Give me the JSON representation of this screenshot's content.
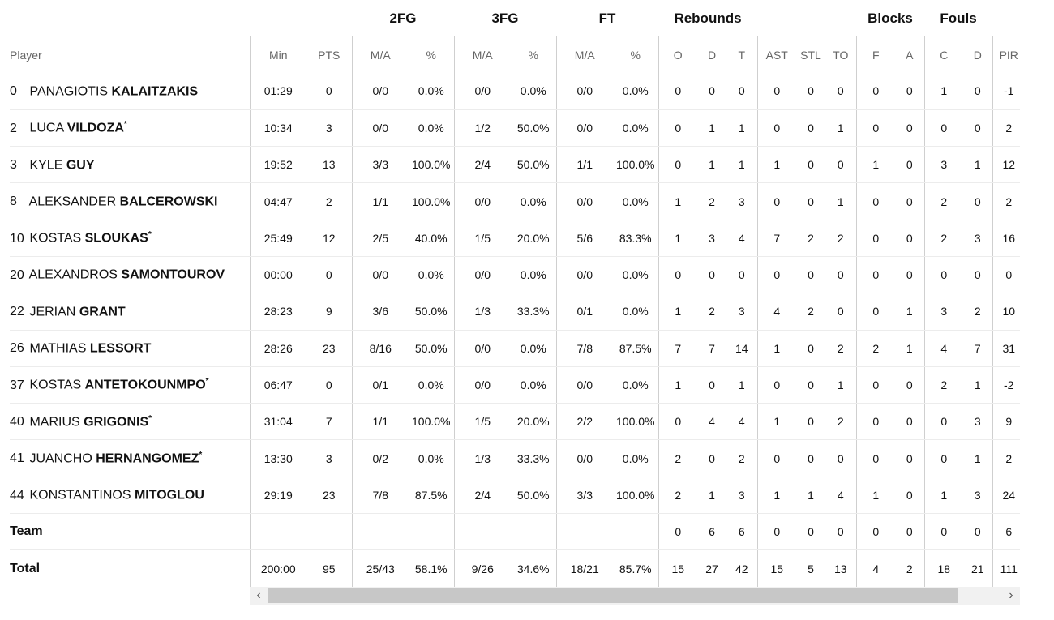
{
  "groups": {
    "fg2": "2FG",
    "fg3": "3FG",
    "ft": "FT",
    "reb": "Rebounds",
    "blk": "Blocks",
    "fouls": "Fouls"
  },
  "headers": {
    "player": "Player",
    "min": "Min",
    "pts": "PTS",
    "fg2_ma": "M/A",
    "fg2_pct": "%",
    "fg3_ma": "M/A",
    "fg3_pct": "%",
    "ft_ma": "M/A",
    "ft_pct": "%",
    "o": "O",
    "d": "D",
    "t": "T",
    "ast": "AST",
    "stl": "STL",
    "to": "TO",
    "bf": "F",
    "ba": "A",
    "fc": "C",
    "fd": "D",
    "pir": "PIR"
  },
  "players": [
    {
      "num": "0",
      "first": "PANAGIOTIS",
      "last": "KALAITZAKIS",
      "star": "",
      "min": "01:29",
      "pts": "0",
      "fg2": "0/0",
      "fg2p": "0.0%",
      "fg3": "0/0",
      "fg3p": "0.0%",
      "ft": "0/0",
      "ftp": "0.0%",
      "o": "0",
      "d": "0",
      "t": "0",
      "ast": "0",
      "stl": "0",
      "to": "0",
      "bf": "0",
      "ba": "0",
      "fc": "1",
      "fd": "0",
      "pir": "-1"
    },
    {
      "num": "2",
      "first": "LUCA",
      "last": "VILDOZA",
      "star": "*",
      "min": "10:34",
      "pts": "3",
      "fg2": "0/0",
      "fg2p": "0.0%",
      "fg3": "1/2",
      "fg3p": "50.0%",
      "ft": "0/0",
      "ftp": "0.0%",
      "o": "0",
      "d": "1",
      "t": "1",
      "ast": "0",
      "stl": "0",
      "to": "1",
      "bf": "0",
      "ba": "0",
      "fc": "0",
      "fd": "0",
      "pir": "2"
    },
    {
      "num": "3",
      "first": "KYLE",
      "last": "GUY",
      "star": "",
      "min": "19:52",
      "pts": "13",
      "fg2": "3/3",
      "fg2p": "100.0%",
      "fg3": "2/4",
      "fg3p": "50.0%",
      "ft": "1/1",
      "ftp": "100.0%",
      "o": "0",
      "d": "1",
      "t": "1",
      "ast": "1",
      "stl": "0",
      "to": "0",
      "bf": "1",
      "ba": "0",
      "fc": "3",
      "fd": "1",
      "pir": "12"
    },
    {
      "num": "8",
      "first": "ALEKSANDER",
      "last": "BALCEROWSKI",
      "star": "",
      "min": "04:47",
      "pts": "2",
      "fg2": "1/1",
      "fg2p": "100.0%",
      "fg3": "0/0",
      "fg3p": "0.0%",
      "ft": "0/0",
      "ftp": "0.0%",
      "o": "1",
      "d": "2",
      "t": "3",
      "ast": "0",
      "stl": "0",
      "to": "1",
      "bf": "0",
      "ba": "0",
      "fc": "2",
      "fd": "0",
      "pir": "2"
    },
    {
      "num": "10",
      "first": "KOSTAS",
      "last": "SLOUKAS",
      "star": "*",
      "min": "25:49",
      "pts": "12",
      "fg2": "2/5",
      "fg2p": "40.0%",
      "fg3": "1/5",
      "fg3p": "20.0%",
      "ft": "5/6",
      "ftp": "83.3%",
      "o": "1",
      "d": "3",
      "t": "4",
      "ast": "7",
      "stl": "2",
      "to": "2",
      "bf": "0",
      "ba": "0",
      "fc": "2",
      "fd": "3",
      "pir": "16"
    },
    {
      "num": "20",
      "first": "ALEXANDROS",
      "last": "SAMONTOUROV",
      "star": "",
      "min": "00:00",
      "pts": "0",
      "fg2": "0/0",
      "fg2p": "0.0%",
      "fg3": "0/0",
      "fg3p": "0.0%",
      "ft": "0/0",
      "ftp": "0.0%",
      "o": "0",
      "d": "0",
      "t": "0",
      "ast": "0",
      "stl": "0",
      "to": "0",
      "bf": "0",
      "ba": "0",
      "fc": "0",
      "fd": "0",
      "pir": "0"
    },
    {
      "num": "22",
      "first": "JERIAN",
      "last": "GRANT",
      "star": "",
      "min": "28:23",
      "pts": "9",
      "fg2": "3/6",
      "fg2p": "50.0%",
      "fg3": "1/3",
      "fg3p": "33.3%",
      "ft": "0/1",
      "ftp": "0.0%",
      "o": "1",
      "d": "2",
      "t": "3",
      "ast": "4",
      "stl": "2",
      "to": "0",
      "bf": "0",
      "ba": "1",
      "fc": "3",
      "fd": "2",
      "pir": "10"
    },
    {
      "num": "26",
      "first": "MATHIAS",
      "last": "LESSORT",
      "star": "",
      "min": "28:26",
      "pts": "23",
      "fg2": "8/16",
      "fg2p": "50.0%",
      "fg3": "0/0",
      "fg3p": "0.0%",
      "ft": "7/8",
      "ftp": "87.5%",
      "o": "7",
      "d": "7",
      "t": "14",
      "ast": "1",
      "stl": "0",
      "to": "2",
      "bf": "2",
      "ba": "1",
      "fc": "4",
      "fd": "7",
      "pir": "31"
    },
    {
      "num": "37",
      "first": "KOSTAS",
      "last": "ANTETOKOUNMPO",
      "star": "*",
      "min": "06:47",
      "pts": "0",
      "fg2": "0/1",
      "fg2p": "0.0%",
      "fg3": "0/0",
      "fg3p": "0.0%",
      "ft": "0/0",
      "ftp": "0.0%",
      "o": "1",
      "d": "0",
      "t": "1",
      "ast": "0",
      "stl": "0",
      "to": "1",
      "bf": "0",
      "ba": "0",
      "fc": "2",
      "fd": "1",
      "pir": "-2"
    },
    {
      "num": "40",
      "first": "MARIUS",
      "last": "GRIGONIS",
      "star": "*",
      "min": "31:04",
      "pts": "7",
      "fg2": "1/1",
      "fg2p": "100.0%",
      "fg3": "1/5",
      "fg3p": "20.0%",
      "ft": "2/2",
      "ftp": "100.0%",
      "o": "0",
      "d": "4",
      "t": "4",
      "ast": "1",
      "stl": "0",
      "to": "2",
      "bf": "0",
      "ba": "0",
      "fc": "0",
      "fd": "3",
      "pir": "9"
    },
    {
      "num": "41",
      "first": "JUANCHO",
      "last": "HERNANGOMEZ",
      "star": "*",
      "min": "13:30",
      "pts": "3",
      "fg2": "0/2",
      "fg2p": "0.0%",
      "fg3": "1/3",
      "fg3p": "33.3%",
      "ft": "0/0",
      "ftp": "0.0%",
      "o": "2",
      "d": "0",
      "t": "2",
      "ast": "0",
      "stl": "0",
      "to": "0",
      "bf": "0",
      "ba": "0",
      "fc": "0",
      "fd": "1",
      "pir": "2"
    },
    {
      "num": "44",
      "first": "KONSTANTINOS",
      "last": "MITOGLOU",
      "star": "",
      "min": "29:19",
      "pts": "23",
      "fg2": "7/8",
      "fg2p": "87.5%",
      "fg3": "2/4",
      "fg3p": "50.0%",
      "ft": "3/3",
      "ftp": "100.0%",
      "o": "2",
      "d": "1",
      "t": "3",
      "ast": "1",
      "stl": "1",
      "to": "4",
      "bf": "1",
      "ba": "0",
      "fc": "1",
      "fd": "3",
      "pir": "24"
    }
  ],
  "team": {
    "label": "Team",
    "min": "",
    "pts": "",
    "fg2": "",
    "fg2p": "",
    "fg3": "",
    "fg3p": "",
    "ft": "",
    "ftp": "",
    "o": "0",
    "d": "6",
    "t": "6",
    "ast": "0",
    "stl": "0",
    "to": "0",
    "bf": "0",
    "ba": "0",
    "fc": "0",
    "fd": "0",
    "pir": "6"
  },
  "total": {
    "label": "Total",
    "min": "200:00",
    "pts": "95",
    "fg2": "25/43",
    "fg2p": "58.1%",
    "fg3": "9/26",
    "fg3p": "34.6%",
    "ft": "18/21",
    "ftp": "85.7%",
    "o": "15",
    "d": "27",
    "t": "42",
    "ast": "15",
    "stl": "5",
    "to": "13",
    "bf": "4",
    "ba": "2",
    "fc": "18",
    "fd": "21",
    "pir": "111"
  },
  "scroll": {
    "left_arrow": "‹",
    "right_arrow": "›",
    "position": 0.02
  }
}
